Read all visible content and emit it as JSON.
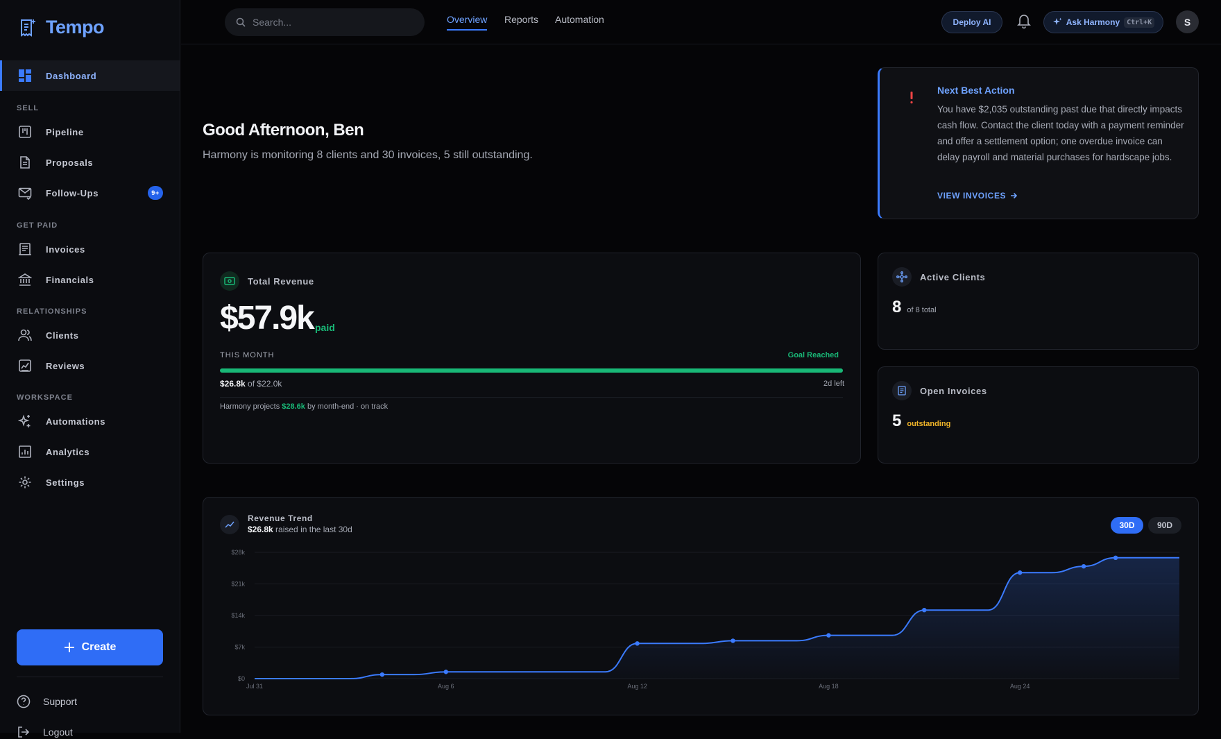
{
  "app": {
    "name": "Tempo"
  },
  "sidebar": {
    "dashboard": "Dashboard",
    "sections": {
      "sell": "SELL",
      "get_paid": "GET PAID",
      "relationships": "RELATIONSHIPS",
      "workspace": "WORKSPACE"
    },
    "items": {
      "pipeline": "Pipeline",
      "proposals": "Proposals",
      "followups": "Follow-Ups",
      "followups_badge": "9+",
      "invoices": "Invoices",
      "financials": "Financials",
      "clients": "Clients",
      "reviews": "Reviews",
      "automations": "Automations",
      "analytics": "Analytics",
      "settings": "Settings"
    },
    "create": "Create",
    "support": "Support",
    "logout": "Logout"
  },
  "topbar": {
    "search_placeholder": "Search...",
    "tabs": {
      "overview": "Overview",
      "reports": "Reports",
      "automation": "Automation"
    },
    "deploy": "Deploy AI",
    "ask": "Ask Harmony",
    "ask_shortcut": "Ctrl+K",
    "avatar": "S"
  },
  "greeting": {
    "title": "Good Afternoon, Ben",
    "subtitle": "Harmony is monitoring 8 clients and 30 invoices, 5 still outstanding."
  },
  "next_action": {
    "title": "Next Best Action",
    "body": "You have $2,035 outstanding past due that directly impacts cash flow. Contact the client today with a payment reminder and offer a settlement option; one overdue invoice can delay payroll and material purchases for hardscape jobs.",
    "link": "VIEW INVOICES"
  },
  "revenue": {
    "label": "Total Revenue",
    "value": "$57.9k",
    "paid": "paid",
    "this_month": "THIS MONTH",
    "goal": "Goal Reached",
    "progress": 1.0,
    "amount": "$26.8k",
    "of_target": "of $22.0k",
    "days_left": "2d left",
    "projection_prefix": "Harmony projects",
    "projection_value": "$28.6k",
    "projection_suffix": "by month-end · on track"
  },
  "active_clients": {
    "label": "Active Clients",
    "value": "8",
    "sub": "of 8 total"
  },
  "open_invoices": {
    "label": "Open Invoices",
    "value": "5",
    "sub": "outstanding"
  },
  "trend": {
    "label": "Revenue Trend",
    "amount": "$26.8k",
    "suffix": "raised in the last 30d",
    "ranges": {
      "r30": "30D",
      "r90": "90D"
    }
  },
  "colors": {
    "accent": "#3b7bff",
    "success": "#19b877",
    "warning": "#f0b429",
    "danger": "#ef4444"
  },
  "chart_data": {
    "type": "area",
    "x": [
      "Jul 31",
      "Aug 1",
      "Aug 2",
      "Aug 3",
      "Aug 4",
      "Aug 5",
      "Aug 6",
      "Aug 7",
      "Aug 8",
      "Aug 9",
      "Aug 10",
      "Aug 11",
      "Aug 12",
      "Aug 13",
      "Aug 14",
      "Aug 15",
      "Aug 16",
      "Aug 17",
      "Aug 18",
      "Aug 19",
      "Aug 20",
      "Aug 21",
      "Aug 22",
      "Aug 23",
      "Aug 24",
      "Aug 25",
      "Aug 26",
      "Aug 27",
      "Aug 28",
      "Aug 29"
    ],
    "values": [
      0,
      0,
      0,
      0,
      0.9,
      0.9,
      1.5,
      1.5,
      1.5,
      1.5,
      1.5,
      1.5,
      7.8,
      7.8,
      7.8,
      8.4,
      8.4,
      8.4,
      9.6,
      9.6,
      9.6,
      15.2,
      15.2,
      15.2,
      23.5,
      23.5,
      24.9,
      26.8,
      26.8,
      26.8
    ],
    "markers": [
      "Aug 4",
      "Aug 6",
      "Aug 12",
      "Aug 15",
      "Aug 18",
      "Aug 21",
      "Aug 24",
      "Aug 26",
      "Aug 27"
    ],
    "x_ticks": [
      "Jul 31",
      "Aug 6",
      "Aug 12",
      "Aug 18",
      "Aug 24"
    ],
    "y_ticks": [
      "$0",
      "$7k",
      "$14k",
      "$21k",
      "$28k"
    ],
    "ylim": [
      0,
      28
    ],
    "grid": true
  }
}
